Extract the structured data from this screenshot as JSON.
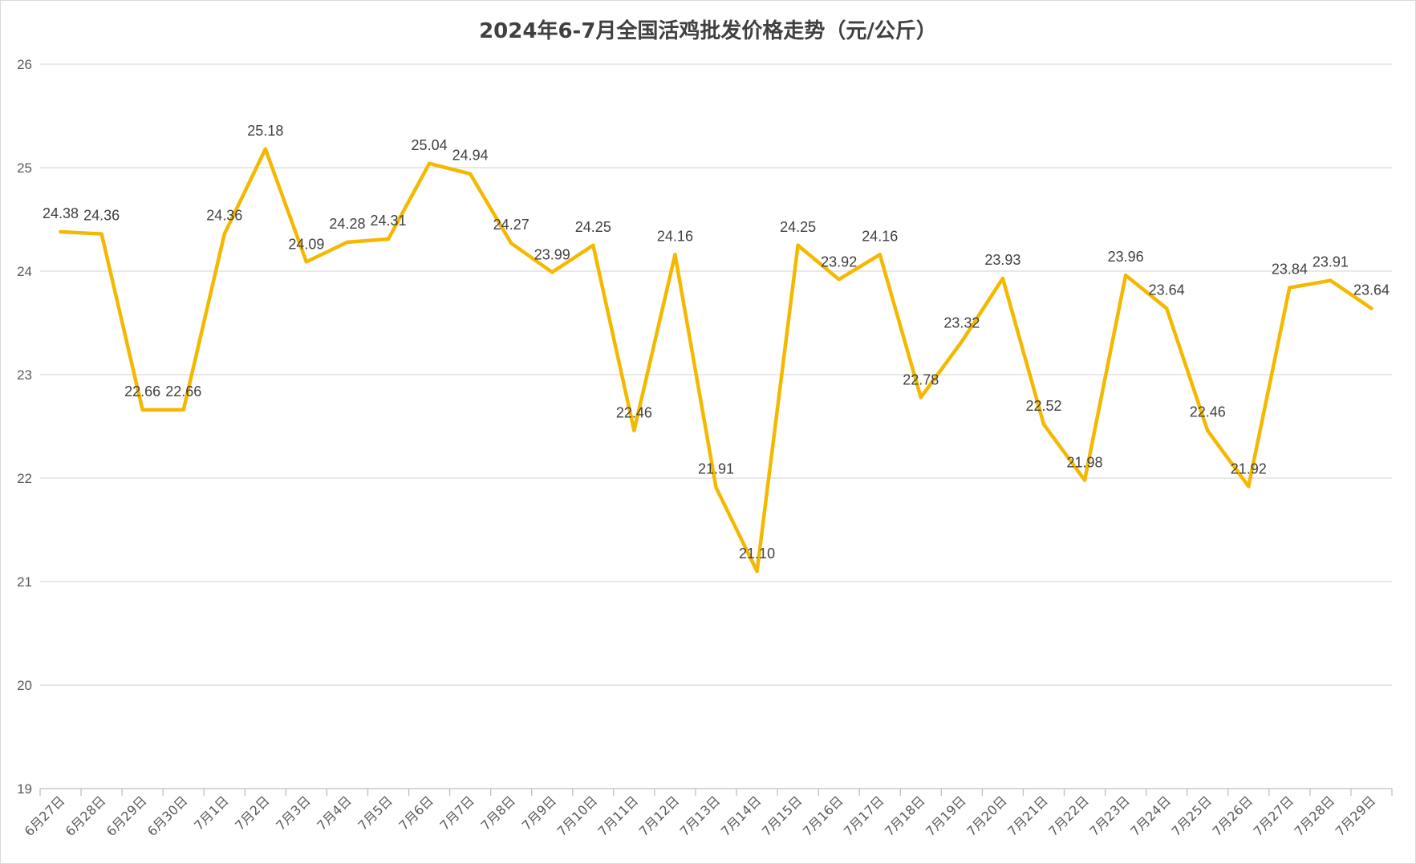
{
  "chart_data": {
    "type": "line",
    "title": "2024年6-7月全国活鸡批发价格走势（元/公斤）",
    "xlabel": "",
    "ylabel": "",
    "ylim": [
      19,
      26
    ],
    "yticks": [
      19,
      20,
      21,
      22,
      23,
      24,
      25,
      26
    ],
    "grid": true,
    "legend": "none",
    "categories": [
      "6月27日",
      "6月28日",
      "6月29日",
      "6月30日",
      "7月1日",
      "7月2日",
      "7月3日",
      "7月4日",
      "7月5日",
      "7月6日",
      "7月7日",
      "7月8日",
      "7月9日",
      "7月10日",
      "7月11日",
      "7月12日",
      "7月13日",
      "7月14日",
      "7月15日",
      "7月16日",
      "7月17日",
      "7月18日",
      "7月19日",
      "7月20日",
      "7月21日",
      "7月22日",
      "7月23日",
      "7月24日",
      "7月25日",
      "7月26日",
      "7月27日",
      "7月28日",
      "7月29日"
    ],
    "series": [
      {
        "values": [
          24.38,
          24.36,
          22.66,
          22.66,
          24.36,
          25.18,
          24.09,
          24.28,
          24.31,
          25.04,
          24.94,
          24.27,
          23.99,
          24.25,
          22.46,
          24.16,
          21.91,
          21.1,
          24.25,
          23.92,
          24.16,
          22.78,
          23.32,
          23.93,
          22.52,
          21.98,
          23.96,
          23.64,
          22.46,
          21.92,
          23.84,
          23.91,
          23.64
        ],
        "labels": [
          "24.38",
          "24.36",
          "22.66",
          "22.66",
          "24.36",
          "25.18",
          "24.09",
          "24.28",
          "24.31",
          "25.04",
          "24.94",
          "24.27",
          "23.99",
          "24.25",
          "22.46",
          "24.16",
          "21.91",
          "21.10",
          "24.25",
          "23.92",
          "24.16",
          "22.78",
          "23.32",
          "23.93",
          "22.52",
          "21.98",
          "23.96",
          "23.64",
          "22.46",
          "21.92",
          "23.84",
          "23.91",
          "23.64"
        ],
        "color": "#F5B800"
      }
    ]
  }
}
